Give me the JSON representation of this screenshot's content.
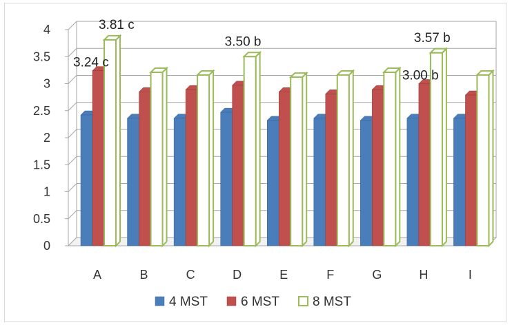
{
  "chart_data": {
    "type": "bar",
    "categories": [
      "A",
      "B",
      "C",
      "D",
      "E",
      "F",
      "G",
      "H",
      "I"
    ],
    "series": [
      {
        "name": "4 MST",
        "color": "#4a7ebb",
        "values": [
          2.42,
          2.36,
          2.36,
          2.47,
          2.32,
          2.36,
          2.32,
          2.36,
          2.36
        ]
      },
      {
        "name": "6 MST",
        "color": "#c0504d",
        "values": [
          3.24,
          2.85,
          2.89,
          2.97,
          2.85,
          2.81,
          2.89,
          3.0,
          2.79
        ]
      },
      {
        "name": "8 MST",
        "color": "#ffffff",
        "stroke": "#9bbb59",
        "values": [
          3.81,
          3.21,
          3.16,
          3.5,
          3.12,
          3.16,
          3.21,
          3.57,
          3.16
        ]
      }
    ],
    "data_labels": [
      {
        "text": "3.81 c",
        "category": "A",
        "series": "8 MST"
      },
      {
        "text": "3.24 c",
        "category": "A",
        "series": "6 MST"
      },
      {
        "text": "3.50 b",
        "category": "D",
        "series": "8 MST"
      },
      {
        "text": "3.57 b",
        "category": "H",
        "series": "8 MST"
      },
      {
        "text": "3.00 b",
        "category": "H",
        "series": "6 MST"
      }
    ],
    "ylim": [
      0,
      4
    ],
    "yticks": [
      "0",
      "0.5",
      "1",
      "1.5",
      "2",
      "2.5",
      "3",
      "3.5",
      "4"
    ],
    "grid": true,
    "legend_position": "bottom",
    "title": "",
    "xlabel": "",
    "ylabel": ""
  }
}
